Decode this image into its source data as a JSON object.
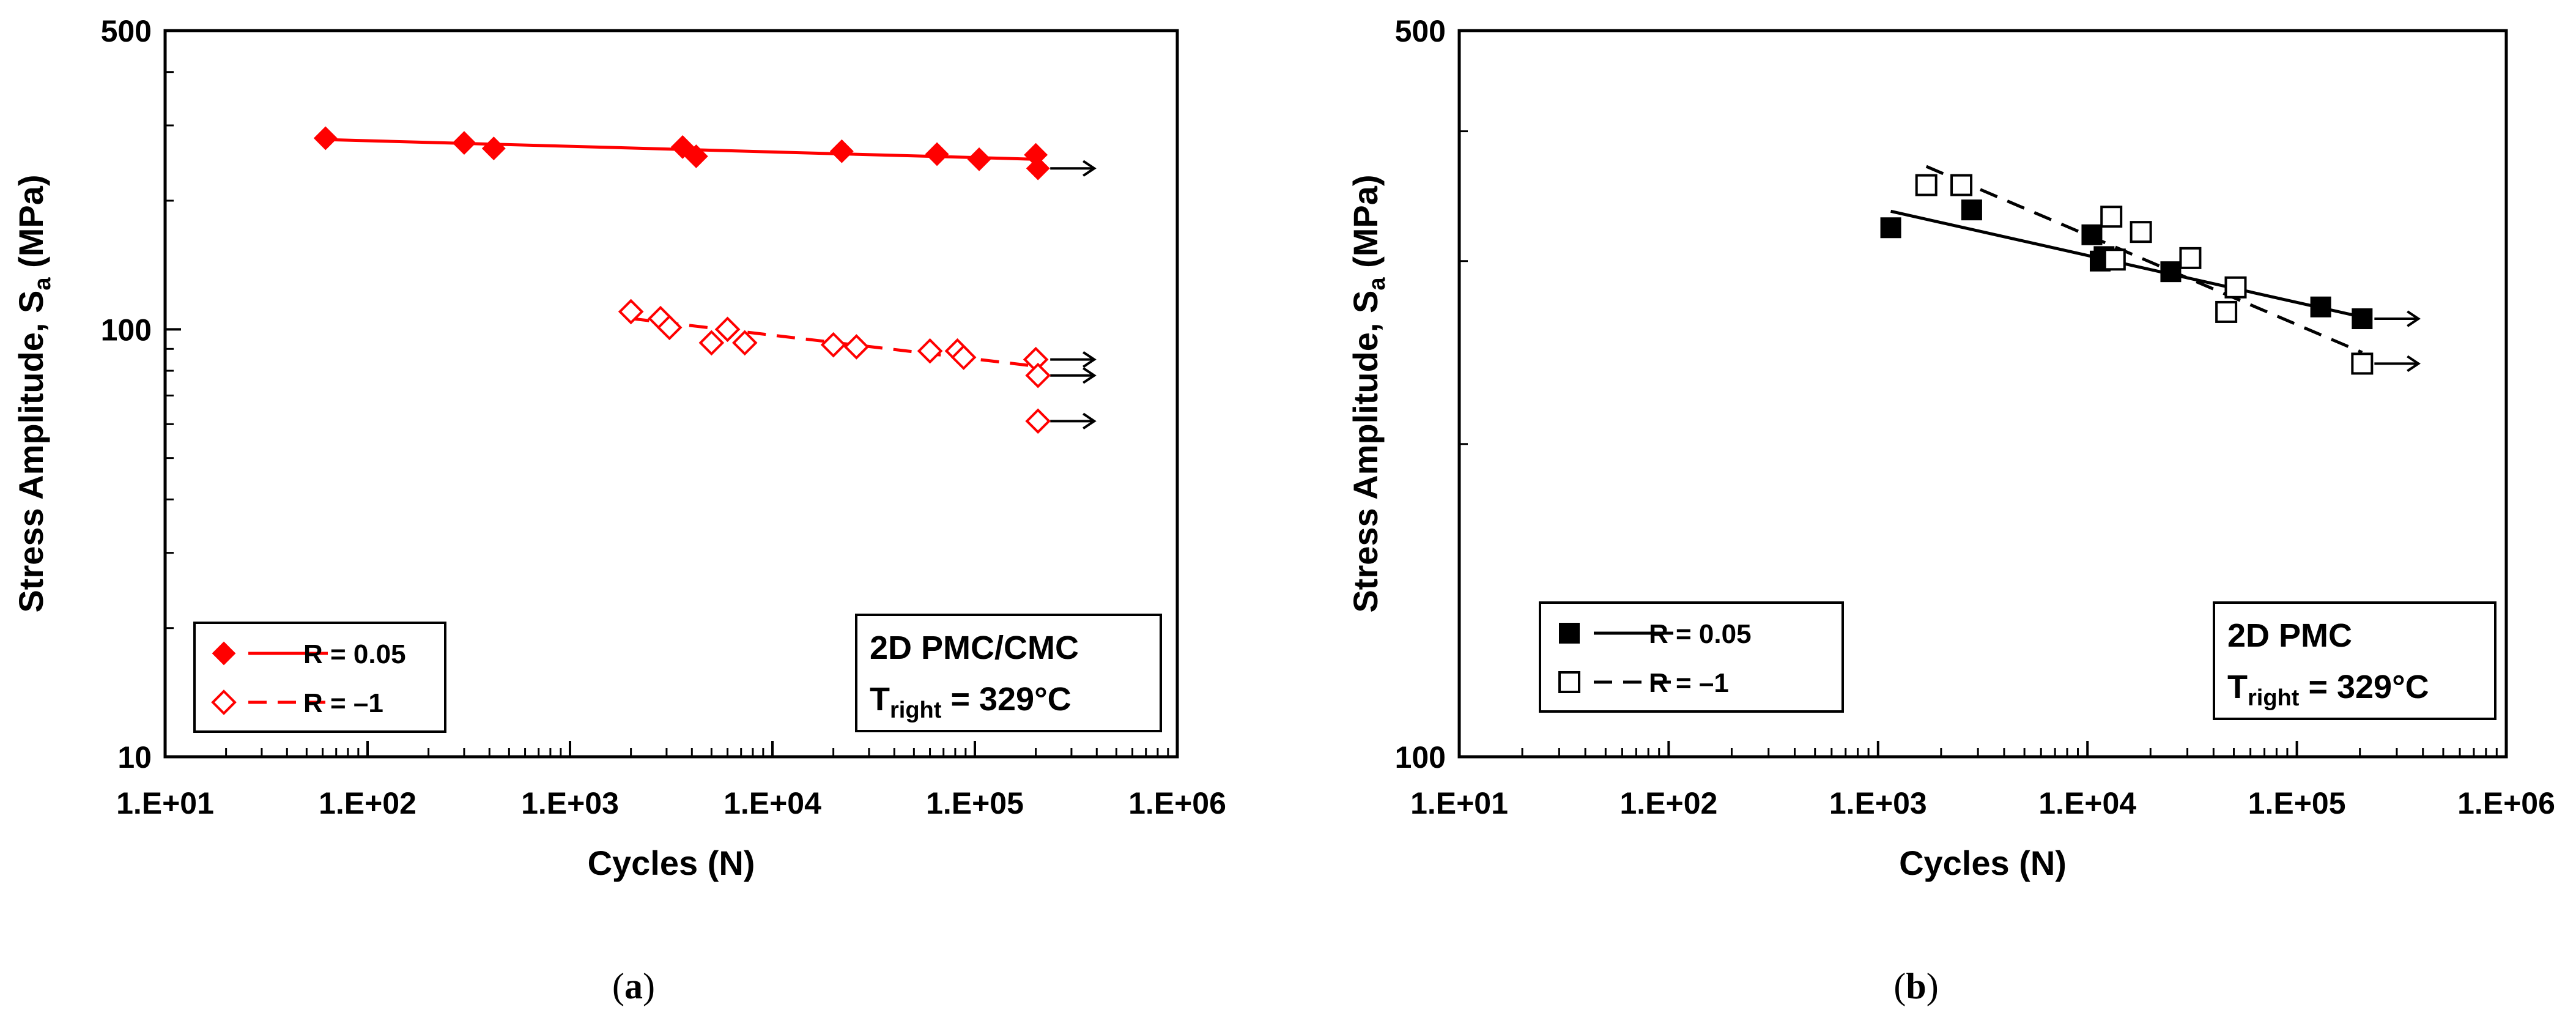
{
  "chart_data": [
    {
      "type": "scatter",
      "panel_label": "a",
      "xlabel": "Cycles (N)",
      "ylabel_main": "Stress Amplitude, S",
      "ylabel_sub": "a",
      "ylabel_unit": " (MPa)",
      "x_scale": "log",
      "y_scale": "log",
      "xlim": [
        10,
        1000000
      ],
      "ylim": [
        10,
        500
      ],
      "x_ticks": [
        10,
        100,
        1000,
        10000,
        100000,
        1000000
      ],
      "x_tick_labels": [
        "1.E+01",
        "1.E+02",
        "1.E+03",
        "1.E+04",
        "1.E+05",
        "1.E+06"
      ],
      "y_labeled_ticks": [
        10,
        100,
        500
      ],
      "y_tick_labels": [
        "10",
        "100",
        "500"
      ],
      "grid": false,
      "legend_position": "bottom-left",
      "annotation": {
        "line1": "2D PMC/CMC",
        "line2_main": "T",
        "line2_sub": "right",
        "line2_rest": " = 329°C"
      },
      "series": [
        {
          "name": "R = 0.05",
          "marker": "diamond-filled",
          "line": "solid",
          "color": "#ff0000",
          "points": [
            [
              62,
              280
            ],
            [
              300,
              273
            ],
            [
              420,
              265
            ],
            [
              3600,
              267
            ],
            [
              4200,
              254
            ],
            [
              22000,
              261
            ],
            [
              65000,
              257
            ],
            [
              105000,
              250
            ],
            [
              200000,
              256
            ],
            [
              205000,
              238
            ]
          ],
          "fit": [
            [
              62,
              278
            ],
            [
              200000,
              250
            ]
          ],
          "runouts": [
            [
              205000,
              238
            ]
          ]
        },
        {
          "name": "R = –1",
          "marker": "diamond-open",
          "line": "dashed",
          "color": "#ff0000",
          "points": [
            [
              2000,
              110
            ],
            [
              2800,
              106
            ],
            [
              3100,
              101
            ],
            [
              5000,
              93
            ],
            [
              6000,
              100
            ],
            [
              7300,
              93
            ],
            [
              20000,
              92
            ],
            [
              26000,
              91
            ],
            [
              60000,
              89
            ],
            [
              82000,
              89
            ],
            [
              88000,
              86
            ],
            [
              200000,
              85
            ],
            [
              205000,
              78
            ],
            [
              205000,
              61
            ]
          ],
          "fit": [
            [
              2000,
              106
            ],
            [
              200000,
              82
            ]
          ],
          "runouts": [
            [
              205000,
              85
            ],
            [
              205000,
              78
            ],
            [
              205000,
              61
            ]
          ]
        }
      ]
    },
    {
      "type": "scatter",
      "panel_label": "b",
      "xlabel": "Cycles (N)",
      "ylabel_main": "Stress Amplitude, S",
      "ylabel_sub": "a",
      "ylabel_unit": " (MPa)",
      "x_scale": "log",
      "y_scale": "log",
      "xlim": [
        10,
        1000000
      ],
      "ylim": [
        100,
        500
      ],
      "x_ticks": [
        10,
        100,
        1000,
        10000,
        100000,
        1000000
      ],
      "x_tick_labels": [
        "1.E+01",
        "1.E+02",
        "1.E+03",
        "1.E+04",
        "1.E+05",
        "1.E+06"
      ],
      "y_labeled_ticks": [
        100,
        500
      ],
      "y_tick_labels": [
        "100",
        "500"
      ],
      "grid": false,
      "legend_position": "bottom-left",
      "annotation": {
        "line1": "2D PMC",
        "line2_main": "T",
        "line2_sub": "right",
        "line2_rest": " = 329°C"
      },
      "series": [
        {
          "name": "R = 0.05",
          "marker": "square-filled",
          "line": "solid",
          "color": "#000000",
          "points": [
            [
              1150,
              323
            ],
            [
              2800,
              336
            ],
            [
              10500,
              318
            ],
            [
              11500,
              300
            ],
            [
              12000,
              303
            ],
            [
              25000,
              293
            ],
            [
              130000,
              271
            ],
            [
              205000,
              264
            ]
          ],
          "fit": [
            [
              1150,
              335
            ],
            [
              205000,
              265
            ]
          ],
          "runouts": [
            [
              205000,
              264
            ]
          ]
        },
        {
          "name": "R = –1",
          "marker": "square-open",
          "line": "dashed",
          "color": "#000000",
          "points": [
            [
              1700,
              355
            ],
            [
              2500,
              355
            ],
            [
              13000,
              331
            ],
            [
              13500,
              301
            ],
            [
              18000,
              320
            ],
            [
              31000,
              302
            ],
            [
              46000,
              268
            ],
            [
              51000,
              283
            ],
            [
              205000,
              239
            ]
          ],
          "fit": [
            [
              1700,
              370
            ],
            [
              205000,
              245
            ]
          ],
          "runouts": [
            [
              205000,
              239
            ]
          ]
        }
      ]
    }
  ]
}
